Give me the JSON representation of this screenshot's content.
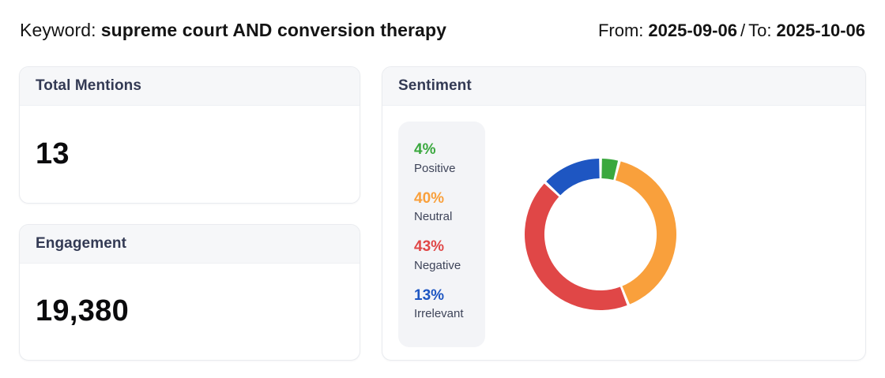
{
  "header": {
    "keyword_label": "Keyword:",
    "keyword_value": "supreme court AND conversion therapy",
    "from_label": "From:",
    "from_value": "2025-09-06",
    "separator": "/",
    "to_label": "To:",
    "to_value": "2025-10-06"
  },
  "cards": {
    "total_mentions": {
      "title": "Total Mentions",
      "value": "13"
    },
    "engagement": {
      "title": "Engagement",
      "value": "19,380"
    },
    "sentiment": {
      "title": "Sentiment"
    }
  },
  "sentiment_legend": [
    {
      "percent_text": "4%",
      "label": "Positive",
      "color": "#3aa83e"
    },
    {
      "percent_text": "40%",
      "label": "Neutral",
      "color": "#f9a03c"
    },
    {
      "percent_text": "43%",
      "label": "Negative",
      "color": "#e04747"
    },
    {
      "percent_text": "13%",
      "label": "Irrelevant",
      "color": "#1e56c2"
    }
  ],
  "chart_data": {
    "type": "pie",
    "subtype": "donut",
    "title": "Sentiment",
    "categories": [
      "Positive",
      "Neutral",
      "Negative",
      "Irrelevant"
    ],
    "values": [
      4,
      40,
      43,
      13
    ],
    "unit": "%",
    "colors": [
      "#3aa83e",
      "#f9a03c",
      "#e04747",
      "#1e56c2"
    ],
    "legend_position": "left",
    "start_angle_deg": 0,
    "direction": "clockwise",
    "inner_radius_ratio": 0.74,
    "pad_angle_deg": 2.2
  }
}
